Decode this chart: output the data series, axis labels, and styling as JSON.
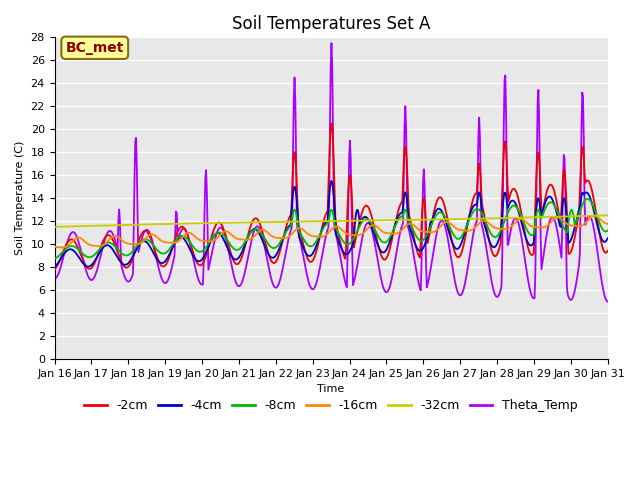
{
  "title": "Soil Temperatures Set A",
  "xlabel": "Time",
  "ylabel": "Soil Temperature (C)",
  "annotation_text": "BC_met",
  "annotation_bg": "#FFFF99",
  "annotation_border": "#8B6914",
  "annotation_text_color": "#8B0000",
  "ylim": [
    0,
    28
  ],
  "yticks": [
    0,
    2,
    4,
    6,
    8,
    10,
    12,
    14,
    16,
    18,
    20,
    22,
    24,
    26,
    28
  ],
  "x_labels": [
    "Jan 16",
    "Jan 17",
    "Jan 18",
    "Jan 19",
    "Jan 20",
    "Jan 21",
    "Jan 22",
    "Jan 23",
    "Jan 24",
    "Jan 25",
    "Jan 26",
    "Jan 27",
    "Jan 28",
    "Jan 29",
    "Jan 30",
    "Jan 31"
  ],
  "series": {
    "-2cm": {
      "color": "#EE0000",
      "linewidth": 1.3
    },
    "-4cm": {
      "color": "#0000CC",
      "linewidth": 1.3
    },
    "-8cm": {
      "color": "#00BB00",
      "linewidth": 1.3
    },
    "-16cm": {
      "color": "#FF8800",
      "linewidth": 1.3
    },
    "-32cm": {
      "color": "#CCCC00",
      "linewidth": 1.3
    },
    "Theta_Temp": {
      "color": "#AA00FF",
      "linewidth": 1.3
    }
  },
  "bg_color": "#E8E8E8",
  "grid_color": "#FFFFFF",
  "title_fontsize": 12,
  "legend_fontsize": 9,
  "axis_fontsize": 8
}
